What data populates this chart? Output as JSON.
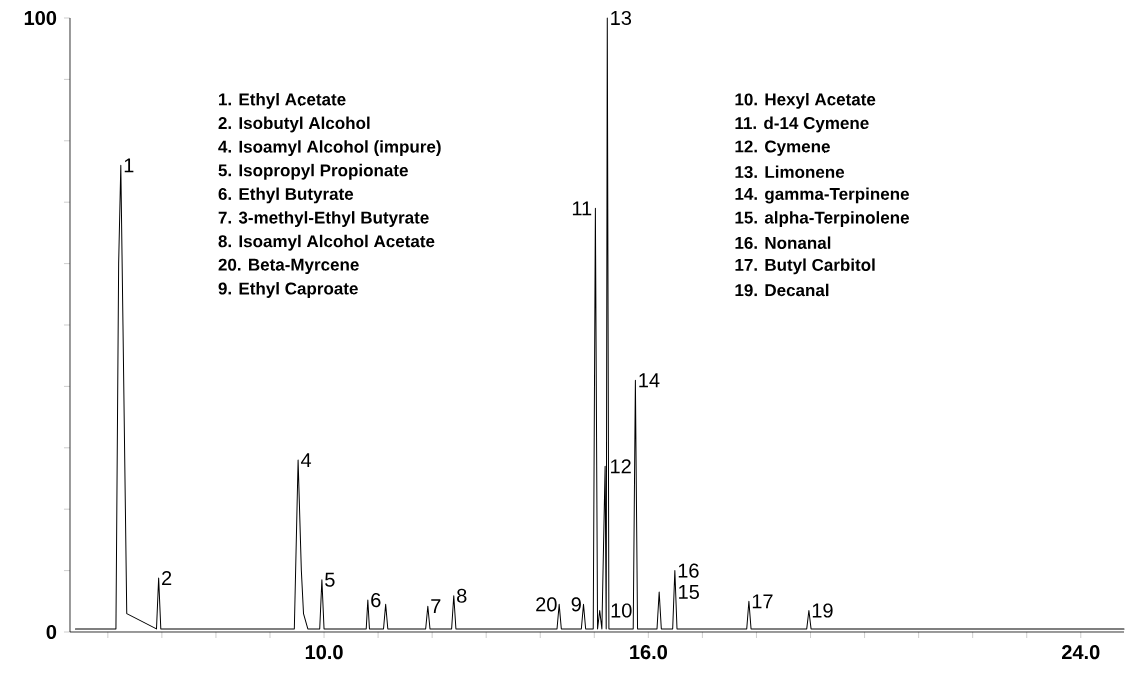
{
  "chart_data": {
    "type": "line",
    "xlim": [
      5.3,
      24.8
    ],
    "ylim": [
      0,
      100
    ],
    "xticks": [
      {
        "value": 6,
        "label": null
      },
      {
        "value": 7,
        "label": null
      },
      {
        "value": 8,
        "label": null
      },
      {
        "value": 9,
        "label": null
      },
      {
        "value": 10,
        "label": "10.0"
      },
      {
        "value": 11,
        "label": null
      },
      {
        "value": 12,
        "label": null
      },
      {
        "value": 13,
        "label": null
      },
      {
        "value": 14,
        "label": null
      },
      {
        "value": 15,
        "label": null
      },
      {
        "value": 16,
        "label": "16.0"
      },
      {
        "value": 17,
        "label": null
      },
      {
        "value": 18,
        "label": null
      },
      {
        "value": 19,
        "label": null
      },
      {
        "value": 20,
        "label": null
      },
      {
        "value": 21,
        "label": null
      },
      {
        "value": 22,
        "label": null
      },
      {
        "value": 23,
        "label": null
      },
      {
        "value": 24,
        "label": "24.0"
      }
    ],
    "yticks": [
      0,
      {
        "value": 10,
        "label": null
      },
      {
        "value": 20,
        "label": null
      },
      {
        "value": 30,
        "label": null
      },
      {
        "value": 40,
        "label": null
      },
      {
        "value": 50,
        "label": null
      },
      {
        "value": 60,
        "label": null
      },
      {
        "value": 70,
        "label": null
      },
      {
        "value": 80,
        "label": null
      },
      {
        "value": 90,
        "label": null
      },
      100
    ],
    "series": [
      {
        "color": "#000000",
        "x": [
          5.4,
          6.15,
          6.2,
          6.24,
          6.28,
          6.35,
          6.9,
          6.94,
          6.98,
          9.45,
          9.52,
          9.58,
          9.62,
          9.7,
          9.92,
          9.96,
          10.0,
          10.78,
          10.81,
          10.84,
          11.1,
          11.14,
          11.18,
          11.88,
          11.92,
          11.96,
          12.36,
          12.4,
          12.44,
          14.31,
          14.35,
          14.39,
          14.76,
          14.8,
          14.84,
          14.98,
          15.02,
          15.06,
          15.1,
          15.14,
          15.2,
          15.22,
          15.24,
          15.27,
          15.3,
          15.72,
          15.76,
          15.8,
          16.16,
          16.2,
          16.24,
          16.45,
          16.49,
          16.53,
          17.82,
          17.86,
          17.9,
          18.93,
          18.97,
          19.01,
          24.8
        ],
        "values": [
          0.5,
          0.5,
          60,
          76,
          50,
          3,
          0.5,
          8.8,
          0.5,
          0.5,
          28,
          10,
          3,
          0.5,
          0.5,
          8.5,
          0.5,
          0.5,
          5.2,
          0.5,
          0.5,
          4.5,
          0.5,
          0.5,
          4.2,
          0.5,
          0.5,
          5.9,
          0.5,
          0.5,
          4.5,
          0.5,
          0.5,
          4.5,
          0.5,
          0.5,
          69,
          0.5,
          3.5,
          0.5,
          27,
          0.5,
          100,
          0.5,
          0.5,
          0.5,
          41,
          0.5,
          0.5,
          6.5,
          0.5,
          0.5,
          10,
          0.5,
          0.5,
          5,
          0.5,
          0.5,
          3.5,
          0.5,
          0.5
        ]
      }
    ],
    "annotations": [
      {
        "text": "1",
        "x": 6.24,
        "y": 76
      },
      {
        "text": "2",
        "x": 6.94,
        "y": 8.8
      },
      {
        "text": "4",
        "x": 9.52,
        "y": 28
      },
      {
        "text": "5",
        "x": 9.96,
        "y": 8.5
      },
      {
        "text": "6",
        "x": 10.81,
        "y": 5.2
      },
      {
        "text": "7",
        "x": 11.92,
        "y": 4.2
      },
      {
        "text": "8",
        "x": 12.4,
        "y": 5.9
      },
      {
        "text": "20",
        "x": 14.35,
        "y": 4.5
      },
      {
        "text": "9",
        "x": 14.8,
        "y": 4.5
      },
      {
        "text": "10",
        "x": 15.1,
        "y": 3.5
      },
      {
        "text": "11",
        "x": 15.02,
        "y": 69
      },
      {
        "text": "12",
        "x": 15.2,
        "y": 27
      },
      {
        "text": "13",
        "x": 15.24,
        "y": 100
      },
      {
        "text": "14",
        "x": 15.76,
        "y": 41
      },
      {
        "text": "15",
        "x": 16.2,
        "y": 6.5
      },
      {
        "text": "16",
        "x": 16.49,
        "y": 10
      },
      {
        "text": "17",
        "x": 17.86,
        "y": 5
      },
      {
        "text": "19",
        "x": 18.97,
        "y": 3.5
      },
      "1.  Ethyl Acetate",
      "2.  Isobutyl Alcohol",
      "4.  Isoamyl Alcohol (impure)",
      "5.  Isopropyl Propionate",
      "6.  Ethyl Butyrate",
      "7.  3-methyl-Ethyl Butyrate",
      "8.  Isoamyl Alcohol Acetate",
      "20.  Beta-Myrcene",
      "9.  Ethyl Caproate",
      "10. Hexyl Acetate",
      "11. d-14 Cymene",
      "12. Cymene",
      "13. Limonene",
      "14. gamma-Terpinene",
      "15. alpha-Terpinolene",
      "16. Nonanal",
      "17. Butyl Carbitol",
      "19. Decanal"
    ]
  }
}
